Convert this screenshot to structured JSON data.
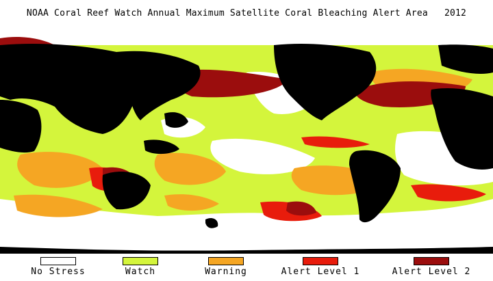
{
  "title": "NOAA Coral Reef Watch Annual Maximum Satellite Coral Bleaching Alert Area   2012",
  "colors": {
    "land": "#000000",
    "no_stress": "#ffffff",
    "watch": "#d4f53c",
    "warning": "#f5a623",
    "alert1": "#e81c0c",
    "alert2": "#9b0d0d"
  },
  "legend": [
    {
      "label": "No Stress",
      "color": "#ffffff"
    },
    {
      "label": "Watch",
      "color": "#d4f53c"
    },
    {
      "label": "Warning",
      "color": "#f5a623"
    },
    {
      "label": "Alert Level 1",
      "color": "#e81c0c"
    },
    {
      "label": "Alert Level 2",
      "color": "#9b0d0d"
    }
  ]
}
